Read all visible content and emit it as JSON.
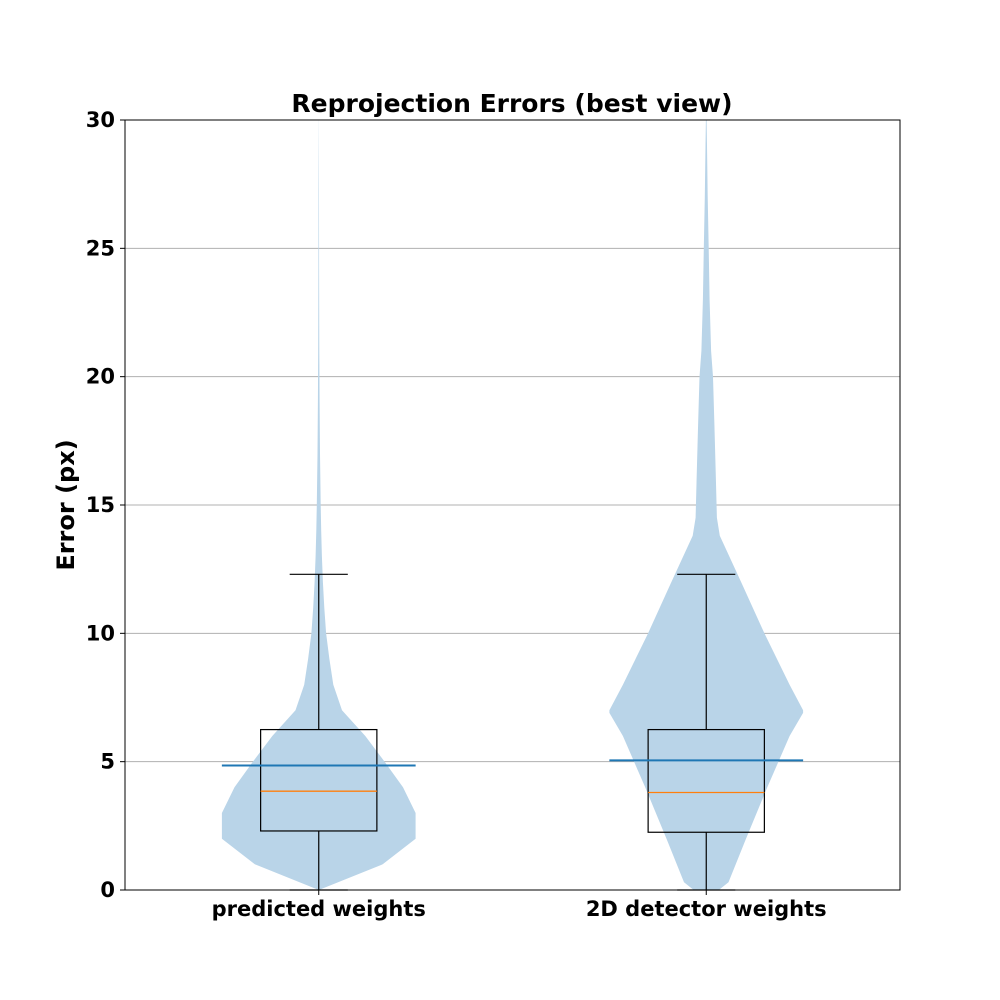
{
  "chart_data": {
    "type": "violin",
    "title": "Reprojection Errors (best view)",
    "xlabel": "",
    "ylabel": "Error (px)",
    "ylim": [
      0,
      30
    ],
    "yticks": [
      0,
      5,
      10,
      15,
      20,
      25,
      30
    ],
    "grid": "horizontal",
    "categories": [
      "predicted weights",
      "2D detector weights"
    ],
    "colors": {
      "violin_fill": "#b9d4e8",
      "mean_line": "#1f77b4",
      "median_line": "#ff7f0e",
      "box": "#000000",
      "grid": "#b0b0b0"
    },
    "series": [
      {
        "category": "predicted weights",
        "mean": 4.85,
        "median": 3.85,
        "q1": 2.3,
        "q3": 6.25,
        "whisker_low": 0,
        "whisker_high": 12.3,
        "density_profile": [
          {
            "y": 0.0,
            "w": 0.0
          },
          {
            "y": 1.0,
            "w": 0.66
          },
          {
            "y": 2.0,
            "w": 1.0
          },
          {
            "y": 3.0,
            "w": 1.0
          },
          {
            "y": 4.0,
            "w": 0.87
          },
          {
            "y": 5.0,
            "w": 0.68
          },
          {
            "y": 6.0,
            "w": 0.48
          },
          {
            "y": 7.0,
            "w": 0.24
          },
          {
            "y": 8.0,
            "w": 0.15
          },
          {
            "y": 9.0,
            "w": 0.11
          },
          {
            "y": 10.0,
            "w": 0.076
          },
          {
            "y": 11.0,
            "w": 0.057
          },
          {
            "y": 12.0,
            "w": 0.043
          },
          {
            "y": 13.0,
            "w": 0.033
          },
          {
            "y": 14.0,
            "w": 0.025
          },
          {
            "y": 15.0,
            "w": 0.02
          },
          {
            "y": 17.0,
            "w": 0.013
          },
          {
            "y": 19.0,
            "w": 0.009
          },
          {
            "y": 21.0,
            "w": 0.006
          },
          {
            "y": 24.0,
            "w": 0.004
          },
          {
            "y": 27.0,
            "w": 0.003
          },
          {
            "y": 30.0,
            "w": 0.001
          }
        ]
      },
      {
        "category": "2D detector weights",
        "mean": 5.05,
        "median": 3.8,
        "q1": 2.25,
        "q3": 6.25,
        "whisker_low": 0,
        "whisker_high": 12.3,
        "density_profile": [
          {
            "y": 0.0,
            "w": 0.13
          },
          {
            "y": 0.3,
            "w": 0.23
          },
          {
            "y": 2.0,
            "w": 0.41
          },
          {
            "y": 4.0,
            "w": 0.63
          },
          {
            "y": 6.0,
            "w": 0.86
          },
          {
            "y": 6.9,
            "w": 1.0
          },
          {
            "y": 7.0,
            "w": 1.0
          },
          {
            "y": 8.0,
            "w": 0.86
          },
          {
            "y": 10.0,
            "w": 0.6
          },
          {
            "y": 12.0,
            "w": 0.36
          },
          {
            "y": 13.8,
            "w": 0.14
          },
          {
            "y": 14.5,
            "w": 0.11
          },
          {
            "y": 16.0,
            "w": 0.1
          },
          {
            "y": 18.0,
            "w": 0.085
          },
          {
            "y": 20.0,
            "w": 0.07
          },
          {
            "y": 21.0,
            "w": 0.05
          },
          {
            "y": 23.0,
            "w": 0.035
          },
          {
            "y": 25.0,
            "w": 0.025
          },
          {
            "y": 27.0,
            "w": 0.015
          },
          {
            "y": 29.0,
            "w": 0.008
          },
          {
            "y": 30.0,
            "w": 0.004
          }
        ]
      }
    ]
  }
}
